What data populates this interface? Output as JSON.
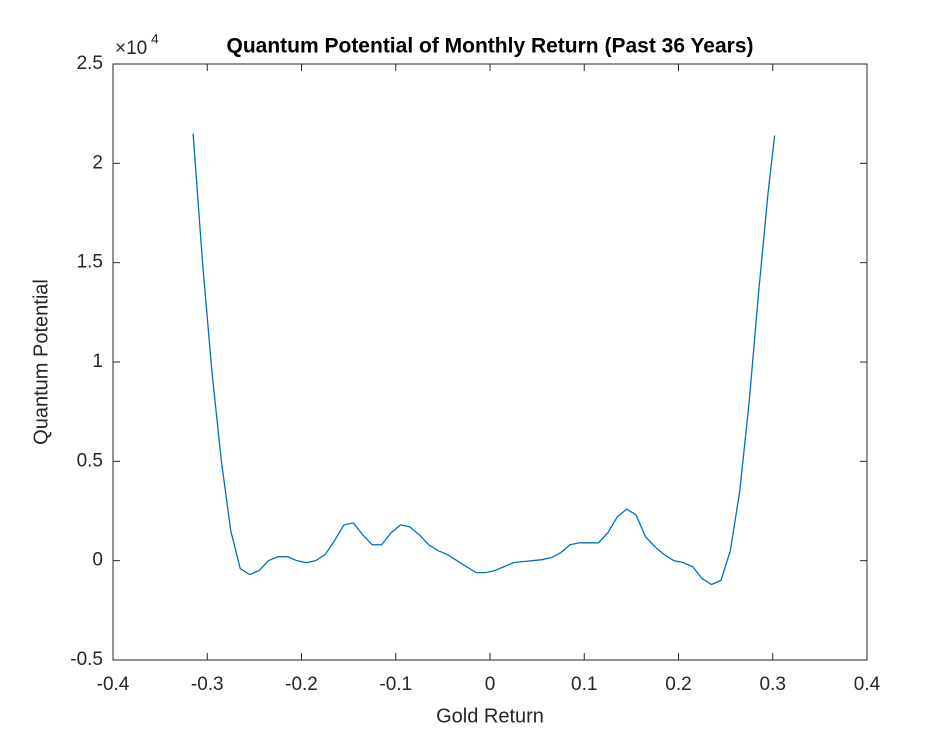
{
  "chart_data": {
    "type": "line",
    "title": "Quantum Potential of Monthly Return (Past 36 Years)",
    "xlabel": "Gold Return",
    "ylabel": "Quantum Potential",
    "y_multiplier": "×10",
    "y_multiplier_exponent": "4",
    "xlim": [
      -0.4,
      0.4
    ],
    "xticks": [
      -0.4,
      -0.3,
      -0.2,
      -0.1,
      0,
      0.1,
      0.2,
      0.3,
      0.4
    ],
    "ylim": [
      -0.5,
      2.5
    ],
    "yticks": [
      -0.5,
      0,
      0.5,
      1,
      1.5,
      2,
      2.5
    ],
    "grid": false,
    "series": [
      {
        "color": "#0072bd",
        "x": [
          -0.315,
          -0.305,
          -0.295,
          -0.285,
          -0.275,
          -0.265,
          -0.255,
          -0.245,
          -0.235,
          -0.225,
          -0.215,
          -0.205,
          -0.195,
          -0.185,
          -0.175,
          -0.165,
          -0.155,
          -0.145,
          -0.135,
          -0.125,
          -0.115,
          -0.105,
          -0.095,
          -0.085,
          -0.075,
          -0.065,
          -0.055,
          -0.045,
          -0.035,
          -0.025,
          -0.015,
          -0.005,
          0.005,
          0.015,
          0.025,
          0.035,
          0.045,
          0.055,
          0.065,
          0.075,
          0.085,
          0.095,
          0.105,
          0.115,
          0.125,
          0.135,
          0.145,
          0.155,
          0.165,
          0.175,
          0.185,
          0.195,
          0.205,
          0.215,
          0.225,
          0.235,
          0.245,
          0.255,
          0.265,
          0.275,
          0.285,
          0.295,
          0.302
        ],
        "values": [
          2.15,
          1.5,
          0.95,
          0.5,
          0.15,
          -0.04,
          -0.07,
          -0.05,
          0.0,
          0.02,
          0.02,
          0.0,
          -0.01,
          0.0,
          0.03,
          0.1,
          0.18,
          0.19,
          0.13,
          0.08,
          0.08,
          0.14,
          0.18,
          0.17,
          0.13,
          0.08,
          0.05,
          0.03,
          0.0,
          -0.03,
          -0.06,
          -0.06,
          -0.05,
          -0.03,
          -0.01,
          -0.005,
          0.0,
          0.005,
          0.015,
          0.04,
          0.08,
          0.09,
          0.09,
          0.09,
          0.14,
          0.22,
          0.26,
          0.23,
          0.12,
          0.07,
          0.03,
          0.0,
          -0.01,
          -0.03,
          -0.09,
          -0.12,
          -0.1,
          0.05,
          0.35,
          0.8,
          1.35,
          1.85,
          2.14
        ]
      }
    ]
  }
}
